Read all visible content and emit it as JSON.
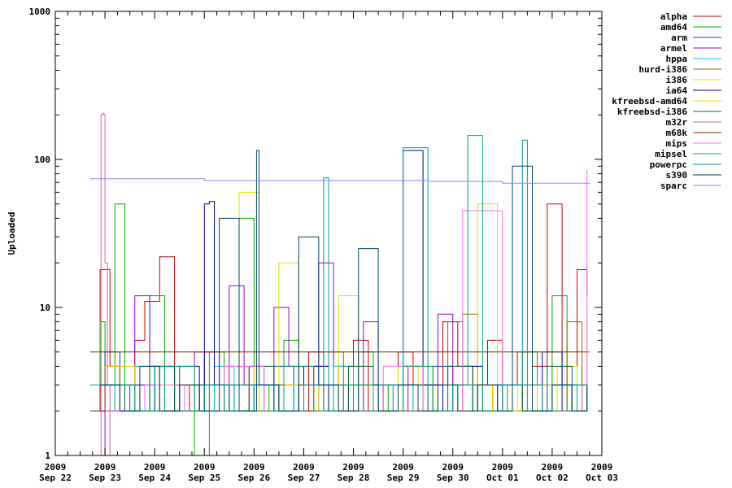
{
  "chart_data": {
    "type": "line",
    "title": "",
    "xlabel": "",
    "ylabel": "Uploaded",
    "yscale": "log",
    "ylim": [
      1,
      1000
    ],
    "y_ticks": [
      {
        "value": 1,
        "label": "1"
      },
      {
        "value": 10,
        "label": "10"
      },
      {
        "value": 100,
        "label": "100"
      },
      {
        "value": 1000,
        "label": "1000"
      }
    ],
    "xlim": [
      0,
      11
    ],
    "x_ticks": [
      {
        "value": 0,
        "year": "2009",
        "date": "Sep 22"
      },
      {
        "value": 1,
        "year": "2009",
        "date": "Sep 23"
      },
      {
        "value": 2,
        "year": "2009",
        "date": "Sep 24"
      },
      {
        "value": 3,
        "year": "2009",
        "date": "Sep 25"
      },
      {
        "value": 4,
        "year": "2009",
        "date": "Sep 26"
      },
      {
        "value": 5,
        "year": "2009",
        "date": "Sep 27"
      },
      {
        "value": 6,
        "year": "2009",
        "date": "Sep 28"
      },
      {
        "value": 7,
        "year": "2009",
        "date": "Sep 29"
      },
      {
        "value": 8,
        "year": "2009",
        "date": "Sep 30"
      },
      {
        "value": 9,
        "year": "2009",
        "date": "Oct 01"
      },
      {
        "value": 10,
        "year": "2009",
        "date": "Oct 02"
      },
      {
        "value": 11,
        "year": "2009",
        "date": "Oct 03"
      }
    ],
    "grid": false,
    "legend": "top-right, outside plot",
    "series": [
      {
        "name": "alpha",
        "color": "#cc0000",
        "x": [
          0.7,
          0.9,
          1.1,
          1.3,
          1.6,
          1.8,
          2.1,
          2.4,
          2.7,
          3.0,
          3.3,
          3.6,
          3.9,
          4.2,
          4.5,
          4.8,
          5.1,
          5.4,
          5.7,
          6.0,
          6.3,
          6.6,
          6.9,
          7.2,
          7.5,
          7.8,
          8.1,
          8.4,
          8.7,
          9.0,
          9.3,
          9.6,
          9.9,
          10.2,
          10.5,
          10.7
        ],
        "y": [
          2,
          18,
          4,
          2,
          6,
          11,
          22,
          3,
          2,
          5,
          3,
          2,
          4,
          2,
          3,
          2,
          5,
          3,
          4,
          6,
          2,
          3,
          5,
          3,
          2,
          8,
          4,
          3,
          6,
          3,
          5,
          4,
          50,
          3,
          18,
          12
        ]
      },
      {
        "name": "amd64",
        "color": "#00aa00",
        "x": [
          0.7,
          0.9,
          1.0,
          1.2,
          1.4,
          1.6,
          1.9,
          2.2,
          2.5,
          2.8,
          3.1,
          3.4,
          3.7,
          4.0,
          4.3,
          4.6,
          4.9,
          5.2,
          5.5,
          5.8,
          6.1,
          6.4,
          6.7,
          7.0,
          7.3,
          7.6,
          7.9,
          8.2,
          8.5,
          8.8,
          9.1,
          9.4,
          9.7,
          10.0,
          10.3,
          10.6
        ],
        "y": [
          3,
          8,
          2,
          50,
          3,
          2,
          12,
          2,
          3,
          1,
          5,
          2,
          40,
          2,
          3,
          6,
          2,
          4,
          3,
          2,
          5,
          3,
          2,
          4,
          2,
          3,
          8,
          4,
          2,
          3,
          2,
          5,
          3,
          12,
          2,
          4
        ]
      },
      {
        "name": "arm",
        "color": "#0044aa",
        "x": [
          0.8,
          1.0,
          1.3,
          1.6,
          2.0,
          2.4,
          2.8,
          3.2,
          3.6,
          4.0,
          4.4,
          4.8,
          5.2,
          5.6,
          6.0,
          6.4,
          6.8,
          7.2,
          7.6,
          8.0,
          8.4,
          8.8,
          9.2,
          9.6,
          10.0,
          10.4,
          10.7
        ],
        "y": [
          2,
          5,
          3,
          2,
          4,
          2,
          3,
          2,
          3,
          2,
          4,
          2,
          3,
          2,
          3,
          2,
          3,
          2,
          4,
          2,
          3,
          2,
          3,
          2,
          3,
          2,
          2
        ]
      },
      {
        "name": "armel",
        "color": "#9900cc",
        "x": [
          0.8,
          1.0,
          1.3,
          1.6,
          1.9,
          2.1,
          2.4,
          2.8,
          3.2,
          3.5,
          3.8,
          4.1,
          4.4,
          4.7,
          5.0,
          5.3,
          5.6,
          5.9,
          6.2,
          6.5,
          6.8,
          7.1,
          7.4,
          7.7,
          8.0,
          8.3,
          8.6,
          8.9,
          9.2,
          9.5,
          9.8,
          10.1,
          10.4,
          10.7
        ],
        "y": [
          1,
          3,
          2,
          12,
          4,
          2,
          3,
          5,
          2,
          14,
          3,
          2,
          10,
          4,
          2,
          20,
          3,
          2,
          8,
          3,
          2,
          4,
          3,
          9,
          3,
          3,
          3,
          3,
          3,
          3,
          3,
          3,
          3,
          3
        ]
      },
      {
        "name": "hppa",
        "color": "#00cccc",
        "x": [
          0.8,
          1.2,
          1.6,
          2.0,
          2.4,
          2.8,
          3.2,
          3.6,
          4.0,
          4.4,
          4.8,
          5.2,
          5.6,
          6.0,
          6.4,
          6.8,
          7.2,
          7.6,
          8.0,
          8.4,
          8.8,
          9.2,
          9.6,
          10.0,
          10.4,
          10.7
        ],
        "y": [
          3,
          2,
          4,
          2,
          3,
          2,
          4,
          2,
          3,
          2,
          3,
          2,
          4,
          2,
          3,
          2,
          3,
          2,
          3,
          2,
          3,
          2,
          3,
          2,
          3,
          2
        ]
      },
      {
        "name": "hurd-i386",
        "color": "#996600",
        "x": [
          0.7,
          1.0,
          1.3,
          1.6,
          1.9,
          2.2,
          2.5,
          2.8,
          3.1,
          3.4,
          3.7,
          4.0,
          4.3,
          4.6,
          4.9,
          5.2,
          5.5,
          5.8,
          6.1,
          6.4,
          6.7,
          7.0,
          7.3,
          7.6,
          7.9,
          8.2,
          8.5,
          8.8,
          9.1,
          9.4,
          9.7,
          10.0,
          10.3,
          10.6
        ],
        "y": [
          2,
          4,
          2,
          2,
          2,
          2,
          2,
          2,
          3,
          2,
          2,
          2,
          2,
          2,
          2,
          4,
          5,
          2,
          2,
          2,
          2,
          2,
          3,
          2,
          2,
          9,
          3,
          2,
          2,
          2,
          2,
          2,
          8,
          2
        ]
      },
      {
        "name": "i386",
        "color": "#dddd00",
        "x": [
          0.9,
          1.3,
          1.7,
          2.1,
          2.5,
          2.9,
          3.3,
          3.7,
          4.1,
          4.5,
          4.9,
          5.3,
          5.7,
          6.1,
          6.5,
          6.9,
          7.3,
          7.7,
          8.1,
          8.5,
          8.9,
          9.3,
          9.7,
          10.1,
          10.5,
          10.7
        ],
        "y": [
          2,
          3,
          2,
          4,
          2,
          3,
          2,
          60,
          2,
          20,
          3,
          2,
          12,
          3,
          2,
          4,
          2,
          3,
          2,
          50,
          2,
          3,
          2,
          4,
          2,
          10
        ]
      },
      {
        "name": "ia64",
        "color": "#0000aa",
        "x": [
          0.9,
          1.5,
          2.0,
          2.5,
          2.9,
          3.0,
          3.1,
          3.2,
          3.5,
          4.0,
          4.5,
          5.0,
          5.5,
          6.0,
          6.5,
          7.0,
          7.4,
          7.8,
          8.2,
          8.6,
          9.0,
          9.4,
          9.8,
          10.2,
          10.6
        ],
        "y": [
          2,
          3,
          2,
          4,
          2,
          50,
          52,
          3,
          2,
          3,
          2,
          4,
          2,
          3,
          2,
          115,
          3,
          2,
          4,
          2,
          3,
          2,
          5,
          2,
          3
        ]
      },
      {
        "name": "kfreebsd-amd64",
        "color": "#ffcc00",
        "x": [
          1.0,
          1.6,
          2.2,
          2.8,
          3.4,
          4.0,
          4.6,
          5.2,
          5.8,
          6.4,
          7.0,
          7.6,
          8.2,
          8.8,
          9.4,
          10.0,
          10.6
        ],
        "y": [
          4,
          2,
          3,
          2,
          4,
          2,
          3,
          2,
          3,
          2,
          4,
          2,
          3,
          2,
          3,
          2,
          3
        ]
      },
      {
        "name": "kfreebsd-i386",
        "color": "#006633",
        "x": [
          0.9,
          1.4,
          1.9,
          2.4,
          2.9,
          3.4,
          3.9,
          4.4,
          4.9,
          5.4,
          5.9,
          6.4,
          6.9,
          7.4,
          7.9,
          8.4,
          8.9,
          9.4,
          9.9,
          10.4,
          10.7
        ],
        "y": [
          3,
          2,
          4,
          2,
          3,
          2,
          4,
          2,
          3,
          2,
          4,
          2,
          3,
          2,
          4,
          2,
          3,
          2,
          4,
          2,
          3
        ]
      },
      {
        "name": "m32r",
        "color": "#cc66aa",
        "x": [
          0.9,
          0.92,
          0.95,
          0.98,
          1.0,
          1.05,
          1.1
        ],
        "y": [
          1,
          200,
          205,
          200,
          20,
          3,
          1
        ]
      },
      {
        "name": "m68k",
        "color": "#663300",
        "x": [
          0.7,
          10.75
        ],
        "y": [
          5,
          5
        ]
      },
      {
        "name": "mips",
        "color": "#ff66ff",
        "x": [
          1.0,
          1.8,
          2.6,
          3.4,
          4.2,
          5.0,
          5.8,
          6.6,
          7.4,
          8.2,
          9.0,
          9.8,
          10.6,
          10.7
        ],
        "y": [
          2,
          3,
          2,
          4,
          2,
          3,
          2,
          4,
          2,
          45,
          3,
          2,
          3,
          85
        ]
      },
      {
        "name": "mipsel",
        "color": "#00aa77",
        "x": [
          1.0,
          1.6,
          2.2,
          2.8,
          3.4,
          4.0,
          4.6,
          5.2,
          5.8,
          6.4,
          7.0,
          7.6,
          8.0,
          8.3,
          8.6,
          9.2,
          9.8,
          10.4,
          10.7
        ],
        "y": [
          3,
          2,
          4,
          2,
          3,
          2,
          4,
          2,
          3,
          2,
          4,
          2,
          3,
          145,
          2,
          3,
          2,
          3,
          2
        ]
      },
      {
        "name": "powerpc",
        "color": "#009999",
        "x": [
          1.0,
          1.5,
          2.0,
          2.5,
          3.0,
          3.5,
          4.0,
          4.5,
          5.0,
          5.4,
          5.5,
          6.0,
          6.5,
          7.0,
          7.5,
          8.0,
          8.5,
          9.0,
          9.4,
          9.5,
          10.0,
          10.5,
          10.7
        ],
        "y": [
          3,
          2,
          4,
          2,
          3,
          2,
          3,
          2,
          3,
          75,
          3,
          2,
          3,
          120,
          2,
          3,
          2,
          3,
          135,
          2,
          3,
          2,
          3
        ]
      },
      {
        "name": "s390",
        "color": "#004466",
        "x": [
          0.9,
          1.3,
          1.7,
          2.1,
          2.5,
          2.9,
          3.3,
          3.7,
          4.05,
          4.1,
          4.5,
          4.9,
          5.3,
          5.7,
          6.1,
          6.5,
          6.9,
          7.3,
          7.7,
          8.1,
          8.5,
          8.9,
          9.2,
          9.6,
          10.0,
          10.4,
          10.7
        ],
        "y": [
          3,
          2,
          4,
          2,
          3,
          2,
          40,
          2,
          115,
          3,
          2,
          30,
          3,
          2,
          25,
          2,
          3,
          2,
          3,
          2,
          3,
          2,
          90,
          2,
          3,
          2,
          3
        ]
      },
      {
        "name": "sparc",
        "color": "#8888ff",
        "x": [
          0.7,
          3.0,
          6.0,
          7.5,
          8.2,
          9.0,
          10.0,
          10.75
        ],
        "y": [
          74,
          72,
          72,
          71,
          71,
          69,
          69,
          68
        ]
      }
    ]
  }
}
